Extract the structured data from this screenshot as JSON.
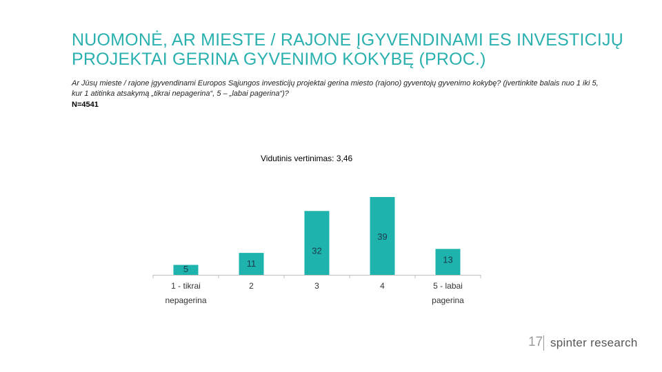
{
  "title": "NUOMONĖ, AR MIESTE / RAJONE ĮGYVENDINAMI ES INVESTICIJŲ PROJEKTAI GERINA GYVENIMO KOKYBĘ (PROC.)",
  "question": "Ar Jūsų mieste / rajone įgyvendinami Europos Sąjungos investicijų projektai gerina miesto (rajono) gyventojų gyvenimo kokybę? (įvertinkite balais nuo 1 iki 5, kur 1 atitinka atsakymą „tikrai nepagerina“, 5 – „labai pagerina“)?",
  "sample": "N=4541",
  "average_label": "Vidutinis vertinimas: 3,46",
  "footer": {
    "page_number": "17",
    "brand": "spinter research"
  },
  "colors": {
    "accent": "#2bb0b0",
    "bar": "#1fb3ad"
  },
  "chart_data": {
    "type": "bar",
    "categories": [
      [
        "1 - tikrai",
        "nepagerina"
      ],
      [
        "2"
      ],
      [
        "3"
      ],
      [
        "4"
      ],
      [
        "5 - labai",
        "pagerina"
      ]
    ],
    "values": [
      5,
      11,
      32,
      39,
      13
    ],
    "ylim": [
      0,
      39
    ]
  }
}
